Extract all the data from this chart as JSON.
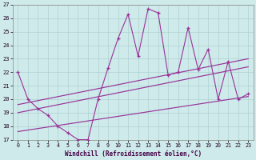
{
  "xlabel": "Windchill (Refroidissement éolien,°C)",
  "background_color": "#ceeaea",
  "line_color": "#993399",
  "x_values": [
    0,
    1,
    2,
    3,
    4,
    5,
    6,
    7,
    8,
    9,
    10,
    11,
    12,
    13,
    14,
    15,
    16,
    17,
    18,
    19,
    20,
    21,
    22,
    23
  ],
  "series_main": [
    22.0,
    20.0,
    19.3,
    18.8,
    18.0,
    17.5,
    17.0,
    17.0,
    20.0,
    22.3,
    24.5,
    26.3,
    23.2,
    26.7,
    26.4,
    21.8,
    22.0,
    25.3,
    22.2,
    23.7,
    20.0,
    22.8,
    20.0,
    20.4
  ],
  "reg_line1_x": [
    0,
    23
  ],
  "reg_line1_y": [
    19.6,
    23.0
  ],
  "reg_line2_x": [
    0,
    23
  ],
  "reg_line2_y": [
    19.0,
    22.4
  ],
  "reg_line3_x": [
    0,
    23
  ],
  "reg_line3_y": [
    17.6,
    20.2
  ],
  "ylim": [
    17,
    27
  ],
  "xlim": [
    -0.5,
    23.5
  ],
  "yticks": [
    17,
    18,
    19,
    20,
    21,
    22,
    23,
    24,
    25,
    26,
    27
  ],
  "xticks": [
    0,
    1,
    2,
    3,
    4,
    5,
    6,
    7,
    8,
    9,
    10,
    11,
    12,
    13,
    14,
    15,
    16,
    17,
    18,
    19,
    20,
    21,
    22,
    23
  ]
}
